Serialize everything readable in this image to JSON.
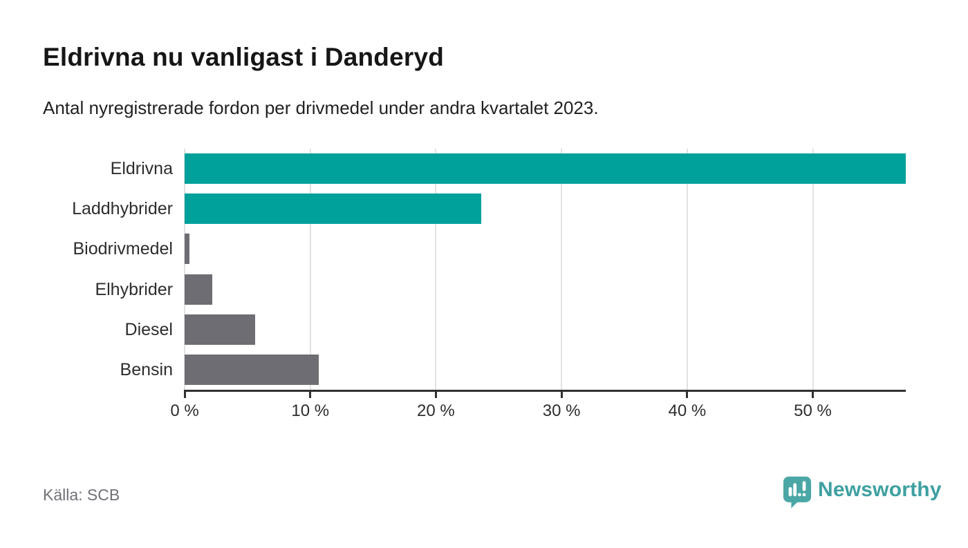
{
  "title": "Eldrivna nu vanligast i Danderyd",
  "subtitle": "Antal nyregistrerade fordon per drivmedel under andra kvartalet 2023.",
  "source": "Källa: SCB",
  "brand": {
    "name": "Newsworthy",
    "icon": "newsworthy-speech-bubble-barchart-icon",
    "icon_color": "#4ba7a5",
    "text_color": "#3ea0a1"
  },
  "colors": {
    "teal_bar": "#00a19b",
    "gray_bar": "#6e6d73",
    "gridline": "#e2e2e2",
    "axis": "#303030"
  },
  "chart_data": {
    "type": "bar",
    "orientation": "horizontal",
    "title": "Eldrivna nu vanligast i Danderyd",
    "subtitle": "Antal nyregistrerade fordon per drivmedel under andra kvartalet 2023.",
    "categories": [
      "Eldrivna",
      "Laddhybrider",
      "Biodrivmedel",
      "Elhybrider",
      "Diesel",
      "Bensin"
    ],
    "values": [
      57.4,
      23.6,
      0.4,
      2.2,
      5.6,
      10.7
    ],
    "unit": "%",
    "bar_colors": [
      "#00a19b",
      "#00a19b",
      "#6e6d73",
      "#6e6d73",
      "#6e6d73",
      "#6e6d73"
    ],
    "x_ticks": [
      0,
      10,
      20,
      30,
      40,
      50
    ],
    "x_tick_labels": [
      "0 %",
      "10 %",
      "20 %",
      "30 %",
      "40 %",
      "50 %"
    ],
    "xlim": [
      0,
      57.4
    ],
    "grid": "vertical",
    "legend": "none"
  }
}
